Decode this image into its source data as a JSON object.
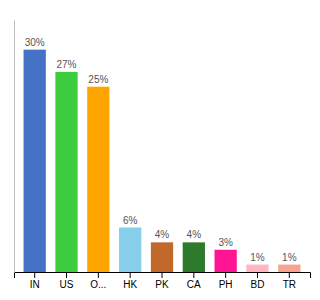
{
  "chart_data": {
    "type": "bar",
    "categories": [
      "IN",
      "US",
      "O...",
      "HK",
      "PK",
      "CA",
      "PH",
      "BD",
      "TR"
    ],
    "values": [
      30,
      27,
      25,
      6,
      4,
      4,
      3,
      1,
      1
    ],
    "value_labels": [
      "30%",
      "27%",
      "25%",
      "6%",
      "4%",
      "4%",
      "3%",
      "1%",
      "1%"
    ],
    "colors": [
      "#4472c4",
      "#3dcc3d",
      "#ffa500",
      "#87ceeb",
      "#c0692a",
      "#2d7a2d",
      "#ff1493",
      "#ffb6c1",
      "#f4a490"
    ],
    "ylim": [
      0,
      34
    ],
    "grid": false,
    "data_labels": true,
    "tick_labels": "x"
  }
}
